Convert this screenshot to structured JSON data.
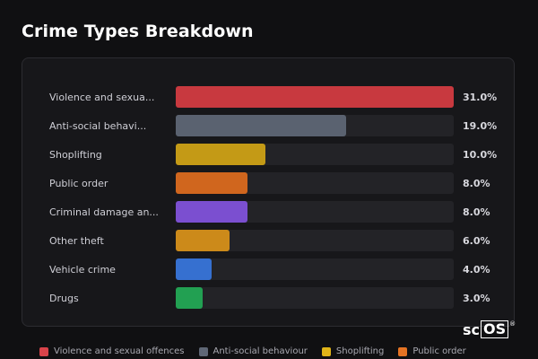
{
  "page_title": "Crime Types Breakdown",
  "chart_data": {
    "type": "bar",
    "orientation": "horizontal",
    "categories": [
      "Violence and sexua...",
      "Anti-social behavi...",
      "Shoplifting",
      "Public order",
      "Criminal damage an...",
      "Other theft",
      "Vehicle crime",
      "Drugs"
    ],
    "values": [
      31.0,
      19.0,
      10.0,
      8.0,
      8.0,
      6.0,
      4.0,
      3.0
    ],
    "value_labels": [
      "31.0%",
      "19.0%",
      "10.0%",
      "8.0%",
      "8.0%",
      "6.0%",
      "4.0%",
      "3.0%"
    ],
    "colors": [
      "#c8393f",
      "#5a6270",
      "#c49a16",
      "#d0661e",
      "#7b4fd0",
      "#cc8a1a",
      "#3670d0",
      "#22a052"
    ],
    "track_color": "#232327",
    "xlim": [
      0,
      31
    ],
    "grid": false
  },
  "legend": {
    "placement": "bottom",
    "items": [
      {
        "label": "Violence and sexual offences",
        "color": "#d9434a"
      },
      {
        "label": "Anti-social behaviour",
        "color": "#5f6776"
      },
      {
        "label": "Shoplifting",
        "color": "#e0b418"
      },
      {
        "label": "Public order",
        "color": "#e57323"
      }
    ]
  },
  "logo": {
    "text_a": "sc",
    "text_b": "OS",
    "mark": "®"
  }
}
